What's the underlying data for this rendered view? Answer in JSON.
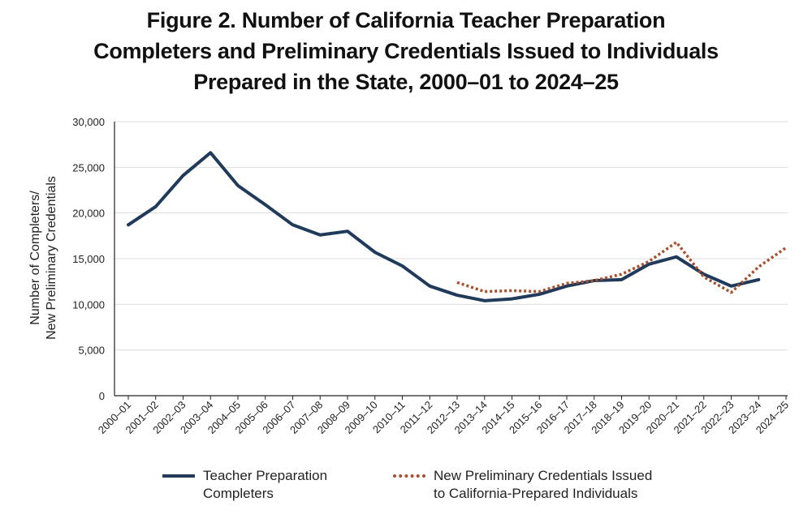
{
  "title": {
    "line1": "Figure 2. Number of California Teacher Preparation",
    "line2": "Completers and Preliminary Credentials Issued to Individuals",
    "line3": "Prepared in the State, 2000–01 to 2024–25"
  },
  "colors": {
    "completers": "#1f3a5a",
    "credentials": "#a8502e",
    "grid": "#dcdcdc",
    "axis": "#222222"
  },
  "chart_data": {
    "type": "line",
    "title": "Figure 2. Number of California Teacher Preparation Completers and Preliminary Credentials Issued to Individuals Prepared in the State, 2000–01 to 2024–25",
    "ylabel_line1": "Number of Completers/",
    "ylabel_line2": "New Preliminary Credentials",
    "xlabel": "",
    "ylim": [
      0,
      30000
    ],
    "yticks": [
      0,
      5000,
      10000,
      15000,
      20000,
      25000,
      30000
    ],
    "ytick_labels": [
      "0",
      "5,000",
      "10,000",
      "15,000",
      "20,000",
      "25,000",
      "30,000"
    ],
    "grid": "horizontal",
    "legend_position": "bottom",
    "categories": [
      "2000–01",
      "2001–02",
      "2002–03",
      "2003–04",
      "2004–05",
      "2005–06",
      "2006–07",
      "2007–08",
      "2008–09",
      "2009–10",
      "2010–11",
      "2011–12",
      "2012–13",
      "2013–14",
      "2014–15",
      "2015–16",
      "2016–17",
      "2017–18",
      "2018–19",
      "2019–20",
      "2020–21",
      "2021–22",
      "2022–23",
      "2023–24",
      "2024–25"
    ],
    "series": [
      {
        "name": "Teacher Preparation Completers",
        "legend_line1": "Teacher Preparation",
        "legend_line2": "Completers",
        "style": "solid",
        "values": [
          18700,
          20700,
          24100,
          26600,
          23000,
          20900,
          18700,
          17600,
          18000,
          15700,
          14200,
          12000,
          11000,
          10400,
          10600,
          11100,
          12000,
          12600,
          12700,
          14400,
          15200,
          13300,
          12000,
          12700,
          null
        ]
      },
      {
        "name": "New Preliminary Credentials Issued to California-Prepared Individuals",
        "legend_line1": "New Preliminary Credentials Issued",
        "legend_line2": "to California-Prepared Individuals",
        "style": "dotted",
        "values": [
          null,
          null,
          null,
          null,
          null,
          null,
          null,
          null,
          null,
          null,
          null,
          null,
          12400,
          11400,
          11500,
          11400,
          12300,
          12600,
          13300,
          14700,
          16800,
          13000,
          11300,
          14100,
          16200
        ]
      }
    ]
  }
}
